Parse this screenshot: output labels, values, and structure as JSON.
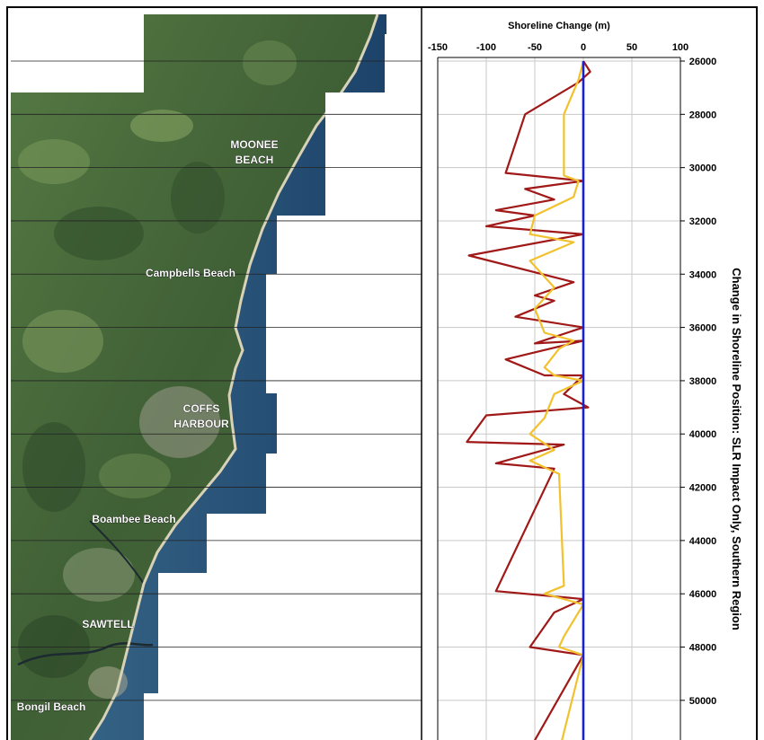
{
  "map": {
    "labels": [
      {
        "id": "moonee",
        "text": "MOONEE BEACH"
      },
      {
        "id": "campbells",
        "text": "Campbells Beach"
      },
      {
        "id": "coffs",
        "text": "COFFS HARBOUR"
      },
      {
        "id": "boambee",
        "text": "Boambee Beach"
      },
      {
        "id": "sawtell",
        "text": "SAWTELL"
      },
      {
        "id": "bongil",
        "text": "Bongil Beach"
      }
    ],
    "colors": {
      "land": "#4a6a3c",
      "ocean": "#1f4a72",
      "beach": "#d8d2b8",
      "label_text": "#ffffff"
    }
  },
  "chart_data": {
    "type": "line",
    "title": "Shoreline Change (m)",
    "ylabel": "Change in Shoreline Position: SLR Impact Only, Southern Region",
    "xlim": [
      -150,
      100
    ],
    "ylim": [
      26000,
      51500
    ],
    "x_ticks": [
      "-150",
      "-100",
      "-50",
      "0",
      "50",
      "100"
    ],
    "y_ticks": [
      "26000",
      "28000",
      "30000",
      "32000",
      "34000",
      "36000",
      "38000",
      "40000",
      "42000",
      "44000",
      "46000",
      "48000",
      "50000"
    ],
    "grid": true,
    "series": [
      {
        "color": "#a01818",
        "points": [
          [
            0,
            26000
          ],
          [
            7,
            26400
          ],
          [
            -5,
            26800
          ],
          [
            -60,
            28000
          ],
          [
            -80,
            30200
          ],
          [
            0,
            30500
          ],
          [
            -60,
            30800
          ],
          [
            -30,
            31200
          ],
          [
            -90,
            31600
          ],
          [
            -50,
            31800
          ],
          [
            -100,
            32200
          ],
          [
            0,
            32500
          ],
          [
            -118,
            33300
          ],
          [
            -10,
            34300
          ],
          [
            -50,
            34800
          ],
          [
            -30,
            35000
          ],
          [
            -70,
            35600
          ],
          [
            0,
            36000
          ],
          [
            -50,
            36600
          ],
          [
            0,
            36500
          ],
          [
            -80,
            37200
          ],
          [
            -40,
            37800
          ],
          [
            0,
            37800
          ],
          [
            -20,
            38500
          ],
          [
            5,
            39000
          ],
          [
            -100,
            39300
          ],
          [
            -110,
            39800
          ],
          [
            -120,
            40300
          ],
          [
            -20,
            40400
          ],
          [
            -90,
            41100
          ],
          [
            -30,
            41300
          ],
          [
            -90,
            45900
          ],
          [
            0,
            46200
          ],
          [
            -30,
            46700
          ],
          [
            -55,
            48000
          ],
          [
            0,
            48300
          ],
          [
            -50,
            51500
          ]
        ]
      },
      {
        "color": "#f2c12e",
        "points": [
          [
            0,
            26000
          ],
          [
            -5,
            26700
          ],
          [
            -20,
            28000
          ],
          [
            -20,
            30300
          ],
          [
            -5,
            30500
          ],
          [
            -10,
            31100
          ],
          [
            -50,
            31800
          ],
          [
            -55,
            32500
          ],
          [
            -10,
            32800
          ],
          [
            -55,
            33500
          ],
          [
            -30,
            34500
          ],
          [
            -50,
            35300
          ],
          [
            -40,
            36200
          ],
          [
            -10,
            36500
          ],
          [
            -25,
            36800
          ],
          [
            -40,
            37500
          ],
          [
            -30,
            37800
          ],
          [
            0,
            38000
          ],
          [
            -30,
            38500
          ],
          [
            -40,
            39400
          ],
          [
            -55,
            40000
          ],
          [
            -30,
            40600
          ],
          [
            -55,
            41000
          ],
          [
            -25,
            41500
          ],
          [
            -20,
            45700
          ],
          [
            -40,
            46000
          ],
          [
            0,
            46400
          ],
          [
            -20,
            47600
          ],
          [
            -25,
            48000
          ],
          [
            0,
            48300
          ],
          [
            -22,
            51500
          ]
        ]
      },
      {
        "color": "#1a22cc",
        "points": [
          [
            0,
            26000
          ],
          [
            0,
            51500
          ]
        ]
      }
    ]
  }
}
